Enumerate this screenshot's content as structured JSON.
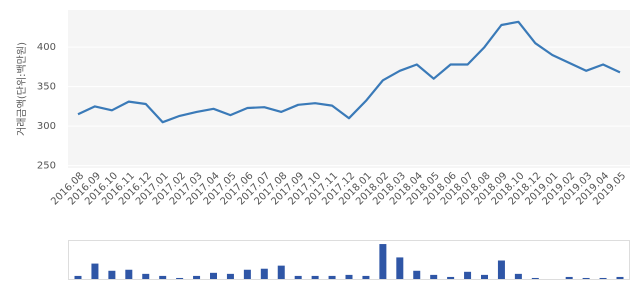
{
  "chart_data": [
    {
      "type": "line",
      "y_label": "거래금액(단위:백만원)",
      "categories": [
        "2016.08",
        "2016.09",
        "2016.10",
        "2016.11",
        "2016.12",
        "2017.01",
        "2017.02",
        "2017.03",
        "2017.04",
        "2017.05",
        "2017.06",
        "2017.07",
        "2017.08",
        "2017.09",
        "2017.10",
        "2017.11",
        "2017.12",
        "2018.01",
        "2018.02",
        "2018.03",
        "2018.04",
        "2018.05",
        "2018.06",
        "2018.07",
        "2018.08",
        "2018.09",
        "2018.10",
        "2018.12",
        "2019.01",
        "2019.02",
        "2019.03",
        "2019.04",
        "2019.05"
      ],
      "values": [
        315,
        325,
        320,
        331,
        328,
        305,
        313,
        318,
        322,
        314,
        323,
        324,
        318,
        327,
        329,
        326,
        310,
        332,
        358,
        370,
        378,
        360,
        378,
        378,
        400,
        428,
        432,
        405,
        390,
        380,
        370,
        378,
        368
      ],
      "color": "#3a7ab8",
      "ylim": [
        247,
        447
      ],
      "yticks": [
        250,
        300,
        350,
        400
      ],
      "grid": true
    },
    {
      "type": "bar",
      "values": [
        3,
        15,
        8,
        9,
        5,
        3,
        1,
        3,
        6,
        5,
        9,
        10,
        13,
        3,
        3,
        3,
        4,
        3,
        34,
        21,
        8,
        4,
        2,
        7,
        4,
        18,
        5,
        1,
        0,
        2,
        1,
        1,
        2
      ],
      "color": "#2f56a6",
      "ylim": [
        0,
        36
      ]
    }
  ]
}
